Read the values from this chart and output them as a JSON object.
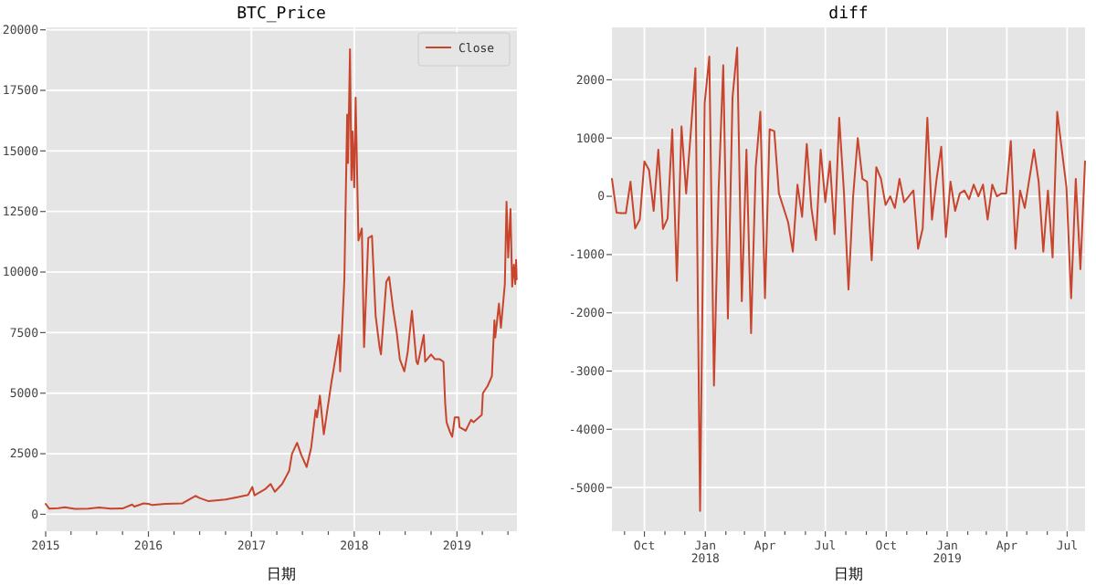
{
  "chart_data": [
    {
      "type": "line",
      "title": "BTC_Price",
      "xlabel": "日期",
      "x": [
        "2015-01-01",
        "2015-01-14",
        "2015-02-15",
        "2015-03-10",
        "2015-04-15",
        "2015-06-01",
        "2015-07-10",
        "2015-08-20",
        "2015-10-01",
        "2015-11-04",
        "2015-11-12",
        "2015-12-15",
        "2016-01-01",
        "2016-01-15",
        "2016-03-01",
        "2016-05-01",
        "2016-06-16",
        "2016-07-01",
        "2016-08-02",
        "2016-10-01",
        "2016-11-15",
        "2016-12-20",
        "2017-01-04",
        "2017-01-12",
        "2017-02-20",
        "2017-03-10",
        "2017-03-25",
        "2017-04-20",
        "2017-05-15",
        "2017-05-25",
        "2017-06-12",
        "2017-06-27",
        "2017-07-16",
        "2017-08-01",
        "2017-08-17",
        "2017-08-22",
        "2017-09-01",
        "2017-09-15",
        "2017-09-25",
        "2017-10-12",
        "2017-10-20",
        "2017-11-08",
        "2017-11-12",
        "2017-11-27",
        "2017-12-07",
        "2017-12-10",
        "2017-12-17",
        "2017-12-22",
        "2017-12-26",
        "2018-01-01",
        "2018-01-06",
        "2018-01-16",
        "2018-01-28",
        "2018-02-05",
        "2018-02-20",
        "2018-03-05",
        "2018-03-18",
        "2018-04-01",
        "2018-04-06",
        "2018-04-25",
        "2018-05-05",
        "2018-05-20",
        "2018-06-01",
        "2018-06-12",
        "2018-06-28",
        "2018-07-10",
        "2018-07-25",
        "2018-08-10",
        "2018-08-15",
        "2018-09-05",
        "2018-09-10",
        "2018-10-01",
        "2018-10-15",
        "2018-11-01",
        "2018-11-14",
        "2018-11-20",
        "2018-11-25",
        "2018-12-07",
        "2018-12-15",
        "2018-12-24",
        "2019-01-07",
        "2019-01-10",
        "2019-02-01",
        "2019-02-20",
        "2019-03-01",
        "2019-03-30",
        "2019-04-03",
        "2019-04-20",
        "2019-05-05",
        "2019-05-14",
        "2019-05-17",
        "2019-05-30",
        "2019-06-06",
        "2019-06-20",
        "2019-06-26",
        "2019-07-02",
        "2019-07-10",
        "2019-07-16",
        "2019-07-22",
        "2019-07-27",
        "2019-07-30",
        "2019-08-01"
      ],
      "series": [
        {
          "name": "Close",
          "color": "#c8442c",
          "values": [
            430,
            230,
            250,
            290,
            220,
            230,
            280,
            230,
            240,
            400,
            320,
            450,
            430,
            380,
            430,
            450,
            760,
            670,
            540,
            610,
            710,
            800,
            1130,
            780,
            1050,
            1250,
            930,
            1250,
            1800,
            2500,
            2950,
            2450,
            1950,
            2750,
            4300,
            4000,
            4900,
            3300,
            4100,
            5450,
            6000,
            7400,
            5900,
            9700,
            16500,
            14500,
            19200,
            13800,
            15800,
            13500,
            17200,
            11300,
            11800,
            6900,
            11400,
            11500,
            8200,
            6900,
            6600,
            9600,
            9800,
            8400,
            7500,
            6400,
            5900,
            6700,
            8400,
            6300,
            6200,
            7400,
            6300,
            6600,
            6400,
            6400,
            6300,
            4600,
            3800,
            3400,
            3200,
            4000,
            4000,
            3600,
            3450,
            3900,
            3800,
            4100,
            5000,
            5300,
            5700,
            8000,
            7300,
            8700,
            7700,
            9500,
            12900,
            10600,
            12600,
            9400,
            10300,
            9500,
            10500,
            9700
          ]
        }
      ],
      "xlim": [
        "2015-01-01",
        "2019-08-02"
      ],
      "ylim": [
        -700,
        20100
      ],
      "xticks": [
        {
          "value": "2015-01-01",
          "label": "2015"
        },
        {
          "value": "2015-04-01",
          "label": null
        },
        {
          "value": "2015-07-01",
          "label": null
        },
        {
          "value": "2015-10-01",
          "label": null
        },
        {
          "value": "2016-01-01",
          "label": "2016"
        },
        {
          "value": "2016-04-01",
          "label": null
        },
        {
          "value": "2016-07-01",
          "label": null
        },
        {
          "value": "2016-10-01",
          "label": null
        },
        {
          "value": "2017-01-01",
          "label": "2017"
        },
        {
          "value": "2017-04-01",
          "label": null
        },
        {
          "value": "2017-07-01",
          "label": null
        },
        {
          "value": "2017-10-01",
          "label": null
        },
        {
          "value": "2018-01-01",
          "label": "2018"
        },
        {
          "value": "2018-04-01",
          "label": null
        },
        {
          "value": "2018-07-01",
          "label": null
        },
        {
          "value": "2018-10-01",
          "label": null
        },
        {
          "value": "2019-01-01",
          "label": "2019"
        },
        {
          "value": "2019-04-01",
          "label": null
        },
        {
          "value": "2019-07-01",
          "label": null
        }
      ],
      "yticks": [
        0,
        2500,
        5000,
        7500,
        10000,
        12500,
        15000,
        17500,
        20000
      ],
      "grid": true,
      "legend": "top right"
    },
    {
      "type": "line",
      "title": "diff",
      "xlabel": "日期",
      "x": [
        "2017-08-13",
        "2017-08-20",
        "2017-08-27",
        "2017-09-03",
        "2017-09-10",
        "2017-09-17",
        "2017-09-24",
        "2017-10-01",
        "2017-10-08",
        "2017-10-15",
        "2017-10-22",
        "2017-10-29",
        "2017-11-05",
        "2017-11-12",
        "2017-11-19",
        "2017-11-26",
        "2017-12-03",
        "2017-12-10",
        "2017-12-17",
        "2017-12-24",
        "2017-12-31",
        "2018-01-07",
        "2018-01-14",
        "2018-01-21",
        "2018-01-28",
        "2018-02-04",
        "2018-02-11",
        "2018-02-18",
        "2018-02-25",
        "2018-03-04",
        "2018-03-11",
        "2018-03-18",
        "2018-03-25",
        "2018-04-01",
        "2018-04-08",
        "2018-04-15",
        "2018-04-22",
        "2018-04-29",
        "2018-05-06",
        "2018-05-13",
        "2018-05-20",
        "2018-05-27",
        "2018-06-03",
        "2018-06-10",
        "2018-06-17",
        "2018-06-24",
        "2018-07-01",
        "2018-07-08",
        "2018-07-15",
        "2018-07-22",
        "2018-07-29",
        "2018-08-05",
        "2018-08-12",
        "2018-08-19",
        "2018-08-26",
        "2018-09-02",
        "2018-09-09",
        "2018-09-16",
        "2018-09-23",
        "2018-09-30",
        "2018-10-07",
        "2018-10-14",
        "2018-10-21",
        "2018-10-28",
        "2018-11-04",
        "2018-11-11",
        "2018-11-18",
        "2018-11-25",
        "2018-12-02",
        "2018-12-09",
        "2018-12-16",
        "2018-12-23",
        "2018-12-30",
        "2019-01-06",
        "2019-01-13",
        "2019-01-20",
        "2019-01-27",
        "2019-02-03",
        "2019-02-10",
        "2019-02-17",
        "2019-02-24",
        "2019-03-03",
        "2019-03-10",
        "2019-03-17",
        "2019-03-24",
        "2019-03-31",
        "2019-04-07",
        "2019-04-14",
        "2019-04-21",
        "2019-04-28",
        "2019-05-05",
        "2019-05-12",
        "2019-05-19",
        "2019-05-26",
        "2019-06-02",
        "2019-06-09",
        "2019-06-16",
        "2019-06-23",
        "2019-06-30",
        "2019-07-07",
        "2019-07-14",
        "2019-07-21",
        "2019-07-28"
      ],
      "series": [
        {
          "color": "#c8442c",
          "values": [
            300,
            -280,
            -290,
            -290,
            250,
            -550,
            -400,
            600,
            450,
            -250,
            800,
            -560,
            -380,
            1150,
            -1450,
            1200,
            50,
            1100,
            2200,
            -5400,
            1600,
            2400,
            -3250,
            100,
            2250,
            -2100,
            1700,
            2550,
            -1800,
            800,
            -2350,
            500,
            1450,
            -1750,
            1150,
            1120,
            50,
            -200,
            -450,
            -950,
            200,
            -350,
            900,
            -200,
            -750,
            800,
            -100,
            600,
            -650,
            1350,
            100,
            -1600,
            0,
            1000,
            300,
            250,
            -1100,
            500,
            300,
            -150,
            0,
            -200,
            300,
            -100,
            0,
            100,
            -900,
            -550,
            1350,
            -400,
            300,
            850,
            -700,
            250,
            -250,
            50,
            100,
            -50,
            200,
            0,
            200,
            -400,
            200,
            0,
            50,
            50,
            950,
            -900,
            100,
            -200,
            300,
            800,
            250,
            -950,
            100,
            -1050,
            1450,
            800,
            150,
            -1750,
            300,
            -1250,
            600
          ]
        }
      ],
      "xlim": [
        "2017-08-13",
        "2019-07-28"
      ],
      "ylim": [
        -5750,
        2900
      ],
      "xticks": [
        {
          "value": "2017-09-01",
          "label": null
        },
        {
          "value": "2017-10-01",
          "label": "Oct"
        },
        {
          "value": "2017-11-01",
          "label": null
        },
        {
          "value": "2017-12-01",
          "label": null
        },
        {
          "value": "2018-01-01",
          "label": "Jan\n2018"
        },
        {
          "value": "2018-02-01",
          "label": null
        },
        {
          "value": "2018-03-01",
          "label": null
        },
        {
          "value": "2018-04-01",
          "label": "Apr"
        },
        {
          "value": "2018-05-01",
          "label": null
        },
        {
          "value": "2018-06-01",
          "label": null
        },
        {
          "value": "2018-07-01",
          "label": "Jul"
        },
        {
          "value": "2018-08-01",
          "label": null
        },
        {
          "value": "2018-09-01",
          "label": null
        },
        {
          "value": "2018-10-01",
          "label": "Oct"
        },
        {
          "value": "2018-11-01",
          "label": null
        },
        {
          "value": "2018-12-01",
          "label": null
        },
        {
          "value": "2019-01-01",
          "label": "Jan\n2019"
        },
        {
          "value": "2019-02-01",
          "label": null
        },
        {
          "value": "2019-03-01",
          "label": null
        },
        {
          "value": "2019-04-01",
          "label": "Apr"
        },
        {
          "value": "2019-05-01",
          "label": null
        },
        {
          "value": "2019-06-01",
          "label": null
        },
        {
          "value": "2019-07-01",
          "label": "Jul"
        }
      ],
      "yticks": [
        -5000,
        -4000,
        -3000,
        -2000,
        -1000,
        0,
        1000,
        2000
      ],
      "grid": true
    }
  ]
}
